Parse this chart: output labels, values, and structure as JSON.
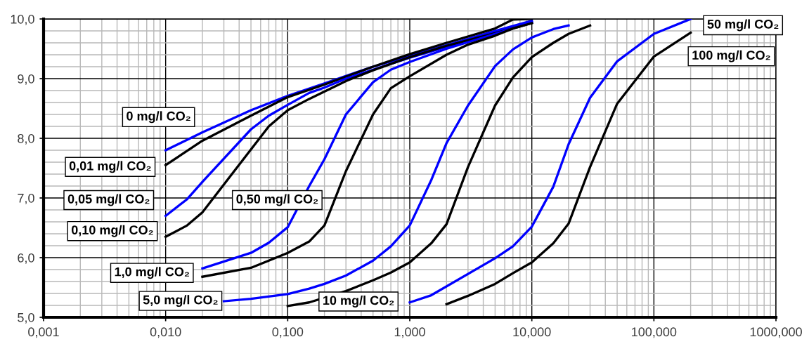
{
  "chart_data": {
    "type": "line",
    "log": "x",
    "grid": true,
    "xlim": [
      0.001,
      1000
    ],
    "ylim": [
      5,
      10
    ],
    "xticks": [
      {
        "value": 0.001,
        "label": "0,001"
      },
      {
        "value": 0.002,
        "label": null
      },
      {
        "value": 0.003,
        "label": null
      },
      {
        "value": 0.004,
        "label": null
      },
      {
        "value": 0.005,
        "label": null
      },
      {
        "value": 0.006,
        "label": null
      },
      {
        "value": 0.007,
        "label": null
      },
      {
        "value": 0.008,
        "label": null
      },
      {
        "value": 0.009,
        "label": null
      },
      {
        "value": 0.01,
        "label": "0,010"
      },
      {
        "value": 0.02,
        "label": null
      },
      {
        "value": 0.03,
        "label": null
      },
      {
        "value": 0.04,
        "label": null
      },
      {
        "value": 0.05,
        "label": null
      },
      {
        "value": 0.06,
        "label": null
      },
      {
        "value": 0.07,
        "label": null
      },
      {
        "value": 0.08,
        "label": null
      },
      {
        "value": 0.09,
        "label": null
      },
      {
        "value": 0.1,
        "label": "0,100"
      },
      {
        "value": 0.2,
        "label": null
      },
      {
        "value": 0.3,
        "label": null
      },
      {
        "value": 0.4,
        "label": null
      },
      {
        "value": 0.5,
        "label": null
      },
      {
        "value": 0.6,
        "label": null
      },
      {
        "value": 0.7,
        "label": null
      },
      {
        "value": 0.8,
        "label": null
      },
      {
        "value": 0.9,
        "label": null
      },
      {
        "value": 1,
        "label": "1,000"
      },
      {
        "value": 2,
        "label": null
      },
      {
        "value": 3,
        "label": null
      },
      {
        "value": 4,
        "label": null
      },
      {
        "value": 5,
        "label": null
      },
      {
        "value": 6,
        "label": null
      },
      {
        "value": 7,
        "label": null
      },
      {
        "value": 8,
        "label": null
      },
      {
        "value": 9,
        "label": null
      },
      {
        "value": 10,
        "label": "10,000"
      },
      {
        "value": 20,
        "label": null
      },
      {
        "value": 30,
        "label": null
      },
      {
        "value": 40,
        "label": null
      },
      {
        "value": 50,
        "label": null
      },
      {
        "value": 60,
        "label": null
      },
      {
        "value": 70,
        "label": null
      },
      {
        "value": 80,
        "label": null
      },
      {
        "value": 90,
        "label": null
      },
      {
        "value": 100,
        "label": "100,000"
      },
      {
        "value": 200,
        "label": null
      },
      {
        "value": 300,
        "label": null
      },
      {
        "value": 400,
        "label": null
      },
      {
        "value": 500,
        "label": null
      },
      {
        "value": 600,
        "label": null
      },
      {
        "value": 700,
        "label": null
      },
      {
        "value": 800,
        "label": null
      },
      {
        "value": 900,
        "label": null
      },
      {
        "value": 1000,
        "label": "1000,000"
      }
    ],
    "yticks": [
      {
        "value": 5,
        "label": "5,0"
      },
      {
        "value": 5.2,
        "label": null
      },
      {
        "value": 5.4,
        "label": null
      },
      {
        "value": 5.6,
        "label": null
      },
      {
        "value": 5.8,
        "label": null
      },
      {
        "value": 6,
        "label": "6,0"
      },
      {
        "value": 6.2,
        "label": null
      },
      {
        "value": 6.4,
        "label": null
      },
      {
        "value": 6.6,
        "label": null
      },
      {
        "value": 6.8,
        "label": null
      },
      {
        "value": 7,
        "label": "7,0"
      },
      {
        "value": 7.2,
        "label": null
      },
      {
        "value": 7.4,
        "label": null
      },
      {
        "value": 7.6,
        "label": null
      },
      {
        "value": 7.8,
        "label": null
      },
      {
        "value": 8,
        "label": "8,0"
      },
      {
        "value": 8.2,
        "label": null
      },
      {
        "value": 8.4,
        "label": null
      },
      {
        "value": 8.6,
        "label": null
      },
      {
        "value": 8.8,
        "label": null
      },
      {
        "value": 9,
        "label": "9,0"
      },
      {
        "value": 9.2,
        "label": null
      },
      {
        "value": 9.4,
        "label": null
      },
      {
        "value": 9.6,
        "label": null
      },
      {
        "value": 9.8,
        "label": null
      },
      {
        "value": 10,
        "label": "10,0"
      }
    ],
    "series": [
      {
        "name": "0 mg/l CO₂",
        "color": "#0000ff",
        "x": [
          0.01,
          0.02,
          0.05,
          0.1,
          0.2,
          0.5,
          1,
          2,
          5,
          10
        ],
        "values": [
          7.8,
          8.1,
          8.47,
          8.71,
          8.92,
          9.2,
          9.38,
          9.56,
          9.8,
          9.97
        ]
      },
      {
        "name": "0,01 mg/l CO₂",
        "color": "#000000",
        "x": [
          0.01,
          0.02,
          0.05,
          0.1,
          0.2,
          0.5,
          1,
          2,
          5,
          7,
          10
        ],
        "values": [
          7.55,
          7.96,
          8.38,
          8.69,
          8.9,
          9.2,
          9.41,
          9.6,
          9.84,
          9.99,
          10.0
        ]
      },
      {
        "name": "0,05 mg/l CO₂",
        "color": "#0000ff",
        "x": [
          0.01,
          0.015,
          0.02,
          0.05,
          0.07,
          0.1,
          0.15,
          0.2,
          0.3,
          0.5,
          1,
          2,
          5,
          10
        ],
        "values": [
          6.7,
          6.98,
          7.27,
          8.15,
          8.38,
          8.56,
          8.76,
          8.85,
          9.0,
          9.15,
          9.35,
          9.53,
          9.78,
          9.95
        ]
      },
      {
        "name": "0,10 mg/l CO₂",
        "color": "#000000",
        "x": [
          0.01,
          0.015,
          0.02,
          0.07,
          0.1,
          0.15,
          0.3,
          0.5,
          1,
          2,
          5,
          10
        ],
        "values": [
          6.35,
          6.54,
          6.76,
          8.2,
          8.47,
          8.66,
          8.96,
          9.14,
          9.36,
          9.55,
          9.76,
          9.93
        ]
      },
      {
        "name": "0,50 mg/l CO₂",
        "color": "#0000ff",
        "x": [
          0.02,
          0.05,
          0.07,
          0.1,
          0.15,
          0.2,
          0.3,
          0.5,
          0.7,
          1,
          2,
          5,
          10
        ],
        "values": [
          5.82,
          6.08,
          6.25,
          6.51,
          7.2,
          7.65,
          8.4,
          8.94,
          9.15,
          9.28,
          9.5,
          9.75,
          9.94
        ]
      },
      {
        "name": "1,0 mg/l CO₂",
        "color": "#000000",
        "x": [
          0.02,
          0.05,
          0.07,
          0.1,
          0.15,
          0.2,
          0.3,
          0.5,
          0.7,
          1,
          2,
          3,
          5,
          7,
          10
        ],
        "values": [
          5.68,
          5.83,
          5.95,
          6.08,
          6.27,
          6.54,
          7.45,
          8.4,
          8.84,
          9.04,
          9.4,
          9.57,
          9.72,
          9.84,
          9.93
        ]
      },
      {
        "name": "5,0 mg/l CO₂",
        "color": "#0000ff",
        "x": [
          0.03,
          0.05,
          0.1,
          0.15,
          0.2,
          0.3,
          0.5,
          0.7,
          1,
          1.5,
          2,
          3,
          5,
          7,
          10,
          15,
          20
        ],
        "values": [
          5.27,
          5.31,
          5.39,
          5.48,
          5.56,
          5.7,
          5.95,
          6.19,
          6.54,
          7.3,
          7.92,
          8.55,
          9.21,
          9.49,
          9.69,
          9.83,
          9.89
        ]
      },
      {
        "name": "10 mg/l CO₂",
        "color": "#000000",
        "x": [
          0.1,
          0.15,
          0.3,
          0.5,
          0.7,
          1,
          1.5,
          2,
          3,
          5,
          7,
          10,
          15,
          20,
          30
        ],
        "values": [
          5.19,
          5.25,
          5.44,
          5.62,
          5.75,
          5.92,
          6.24,
          6.56,
          7.52,
          8.55,
          9.02,
          9.36,
          9.6,
          9.75,
          9.89
        ]
      },
      {
        "name": "50 mg/l CO₂",
        "color": "#0000ff",
        "x": [
          1,
          1.5,
          5,
          7,
          10,
          15,
          20,
          30,
          50,
          100,
          200
        ],
        "values": [
          5.25,
          5.37,
          5.99,
          6.19,
          6.52,
          7.19,
          7.9,
          8.68,
          9.29,
          9.75,
          10.0
        ]
      },
      {
        "name": "100 mg/l CO₂",
        "color": "#000000",
        "x": [
          2,
          3,
          5,
          7,
          10,
          15,
          20,
          30,
          50,
          100,
          200
        ],
        "values": [
          5.22,
          5.36,
          5.56,
          5.74,
          5.92,
          6.24,
          6.57,
          7.52,
          8.58,
          9.37,
          9.77
        ]
      }
    ]
  }
}
